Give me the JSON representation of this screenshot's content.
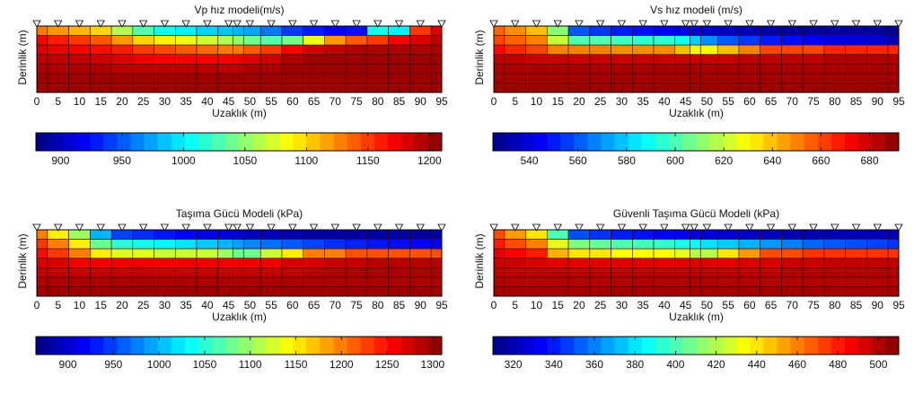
{
  "chart_data": [
    {
      "type": "heatmap",
      "title": "Vp hız modeli(m/s)",
      "xlabel": "Uzaklık (m)",
      "ylabel": "Derinlik (m)",
      "x_ticks": [
        "0",
        "5",
        "10",
        "15",
        "20",
        "25",
        "30",
        "35",
        "40",
        "45",
        "50",
        "55",
        "60",
        "65",
        "70",
        "75",
        "80",
        "85",
        "90",
        "95"
      ],
      "xlim": [
        0,
        95
      ],
      "colorbar": {
        "min": 880,
        "max": 1210,
        "ticks": [
          "900",
          "950",
          "1000",
          "1050",
          "1100",
          "1150",
          "1200"
        ]
      },
      "columns_x": [
        0,
        5,
        10,
        15,
        20,
        25,
        30,
        35,
        40,
        45,
        47,
        50,
        55,
        60,
        65,
        70,
        75,
        80,
        85,
        90,
        95
      ],
      "layers": [
        {
          "layer": 1,
          "values": [
            1130,
            1120,
            1110,
            1100,
            1060,
            1030,
            1010,
            1000,
            990,
            985,
            980,
            975,
            960,
            940,
            930,
            920,
            925,
            1010,
            1000,
            1150,
            1180
          ]
        },
        {
          "layer": 2,
          "values": [
            1170,
            1160,
            1150,
            1140,
            1120,
            1100,
            1090,
            1080,
            1070,
            1060,
            1050,
            1040,
            1030,
            1040,
            1080,
            1120,
            1140,
            1150,
            1170,
            1180,
            1190
          ]
        },
        {
          "layer": 3,
          "values": [
            1180,
            1175,
            1170,
            1165,
            1160,
            1150,
            1145,
            1140,
            1135,
            1130,
            1130,
            1140,
            1150,
            1170,
            1185,
            1190,
            1195,
            1195,
            1195,
            1195,
            1195
          ]
        },
        {
          "layer": 4,
          "values": [
            1190,
            1190,
            1190,
            1185,
            1180,
            1175,
            1170,
            1170,
            1170,
            1170,
            1175,
            1180,
            1185,
            1195,
            1200,
            1200,
            1200,
            1200,
            1200,
            1200,
            1200
          ]
        },
        {
          "layer": 5,
          "values": [
            1195,
            1195,
            1195,
            1195,
            1190,
            1190,
            1190,
            1190,
            1190,
            1190,
            1190,
            1195,
            1195,
            1200,
            1200,
            1200,
            1200,
            1200,
            1200,
            1200,
            1200
          ]
        },
        {
          "layer": 6,
          "values": [
            1200,
            1200,
            1200,
            1200,
            1200,
            1200,
            1200,
            1200,
            1200,
            1200,
            1200,
            1200,
            1200,
            1200,
            1200,
            1200,
            1200,
            1200,
            1200,
            1200,
            1200
          ]
        },
        {
          "layer": 7,
          "values": [
            1200,
            1200,
            1200,
            1200,
            1200,
            1200,
            1200,
            1200,
            1200,
            1200,
            1200,
            1200,
            1200,
            1200,
            1200,
            1200,
            1200,
            1200,
            1200,
            1200,
            1200
          ]
        }
      ],
      "geophones_x": [
        0,
        5,
        10,
        15,
        20,
        25,
        30,
        35,
        40,
        45,
        47,
        50,
        55,
        60,
        65,
        70,
        75,
        80,
        85,
        90,
        95
      ]
    },
    {
      "type": "heatmap",
      "title": "Vs hız modeli (m/s)",
      "xlabel": "Uzaklık (m)",
      "ylabel": "Derinlik (m)",
      "x_ticks": [
        "0",
        "5",
        "10",
        "15",
        "20",
        "25",
        "30",
        "35",
        "40",
        "45",
        "50",
        "55",
        "60",
        "65",
        "70",
        "75",
        "80",
        "85",
        "90",
        "95"
      ],
      "xlim": [
        0,
        95
      ],
      "colorbar": {
        "min": 525,
        "max": 692,
        "ticks": [
          "540",
          "560",
          "580",
          "600",
          "620",
          "640",
          "660",
          "680"
        ]
      },
      "columns_x": [
        0,
        5,
        10,
        15,
        20,
        25,
        30,
        35,
        40,
        45,
        47,
        50,
        55,
        60,
        65,
        70,
        75,
        80,
        85,
        90,
        95
      ],
      "layers": [
        {
          "layer": 1,
          "values": [
            655,
            648,
            640,
            610,
            560,
            555,
            550,
            548,
            545,
            542,
            540,
            538,
            536,
            534,
            532,
            530,
            530,
            530,
            530,
            530,
            528
          ]
        },
        {
          "layer": 2,
          "values": [
            660,
            655,
            650,
            620,
            600,
            600,
            598,
            595,
            595,
            590,
            580,
            570,
            560,
            555,
            550,
            548,
            545,
            542,
            540,
            538,
            535
          ]
        },
        {
          "layer": 3,
          "values": [
            670,
            665,
            660,
            650,
            650,
            650,
            648,
            648,
            648,
            640,
            630,
            630,
            640,
            650,
            660,
            660,
            660,
            665,
            665,
            665,
            665
          ]
        },
        {
          "layer": 4,
          "values": [
            682,
            682,
            680,
            680,
            680,
            680,
            680,
            680,
            680,
            680,
            680,
            680,
            680,
            682,
            682,
            682,
            682,
            684,
            684,
            684,
            684
          ]
        },
        {
          "layer": 5,
          "values": [
            685,
            685,
            685,
            685,
            685,
            685,
            685,
            685,
            685,
            685,
            685,
            685,
            685,
            685,
            685,
            685,
            685,
            685,
            685,
            685,
            685
          ]
        },
        {
          "layer": 6,
          "values": [
            686,
            686,
            686,
            686,
            686,
            686,
            686,
            686,
            686,
            686,
            686,
            686,
            686,
            686,
            686,
            686,
            686,
            686,
            686,
            686,
            686
          ]
        },
        {
          "layer": 7,
          "values": [
            687,
            687,
            687,
            687,
            687,
            687,
            687,
            687,
            687,
            687,
            687,
            687,
            687,
            687,
            687,
            687,
            687,
            687,
            687,
            687,
            687
          ]
        }
      ],
      "geophones_x": [
        0,
        5,
        10,
        15,
        20,
        25,
        30,
        35,
        40,
        45,
        47,
        50,
        55,
        60,
        65,
        70,
        75,
        80,
        85,
        90,
        95
      ]
    },
    {
      "type": "heatmap",
      "title": "Taşıma Gücü Modeli (kPa)",
      "xlabel": "Uzaklık (m)",
      "ylabel": "Derinlik (m)",
      "x_ticks": [
        "0",
        "5",
        "10",
        "15",
        "20",
        "25",
        "30",
        "35",
        "40",
        "45",
        "50",
        "55",
        "60",
        "65",
        "70",
        "75",
        "80",
        "85",
        "90",
        "95"
      ],
      "xlim": [
        0,
        95
      ],
      "colorbar": {
        "min": 865,
        "max": 1310,
        "ticks": [
          "900",
          "950",
          "1000",
          "1050",
          "1100",
          "1150",
          "1200",
          "1250",
          "1300"
        ]
      },
      "columns_x": [
        0,
        5,
        10,
        15,
        20,
        25,
        30,
        35,
        40,
        45,
        47,
        50,
        55,
        60,
        65,
        70,
        75,
        80,
        85,
        90,
        95
      ],
      "layers": [
        {
          "layer": 1,
          "values": [
            1200,
            1150,
            1100,
            1000,
            950,
            940,
            930,
            920,
            910,
            905,
            900,
            895,
            890,
            885,
            880,
            880,
            880,
            880,
            880,
            880,
            880
          ]
        },
        {
          "layer": 2,
          "values": [
            1230,
            1200,
            1150,
            1080,
            1050,
            1040,
            1030,
            1020,
            1010,
            1000,
            990,
            980,
            970,
            960,
            950,
            940,
            935,
            930,
            925,
            920,
            915
          ]
        },
        {
          "layer": 3,
          "values": [
            1250,
            1230,
            1200,
            1150,
            1130,
            1130,
            1120,
            1120,
            1120,
            1100,
            1080,
            1080,
            1120,
            1150,
            1200,
            1200,
            1220,
            1220,
            1220,
            1220,
            1220
          ]
        },
        {
          "layer": 4,
          "values": [
            1270,
            1270,
            1260,
            1260,
            1260,
            1260,
            1260,
            1260,
            1260,
            1260,
            1260,
            1260,
            1260,
            1270,
            1270,
            1280,
            1280,
            1285,
            1285,
            1285,
            1285
          ]
        },
        {
          "layer": 5,
          "values": [
            1280,
            1280,
            1280,
            1280,
            1280,
            1280,
            1280,
            1280,
            1280,
            1280,
            1280,
            1280,
            1280,
            1280,
            1285,
            1290,
            1290,
            1290,
            1290,
            1290,
            1290
          ]
        },
        {
          "layer": 6,
          "values": [
            1290,
            1290,
            1290,
            1290,
            1290,
            1290,
            1290,
            1290,
            1290,
            1290,
            1290,
            1290,
            1290,
            1290,
            1290,
            1290,
            1290,
            1290,
            1290,
            1290,
            1290
          ]
        },
        {
          "layer": 7,
          "values": [
            1295,
            1295,
            1295,
            1295,
            1295,
            1295,
            1295,
            1295,
            1295,
            1295,
            1295,
            1295,
            1295,
            1295,
            1295,
            1295,
            1295,
            1295,
            1295,
            1295,
            1295
          ]
        }
      ],
      "geophones_x": [
        0,
        5,
        10,
        15,
        20,
        25,
        30,
        35,
        40,
        45,
        47,
        50,
        55,
        60,
        65,
        70,
        75,
        80,
        85,
        90,
        95
      ]
    },
    {
      "type": "heatmap",
      "title": "Güvenli Taşıma Gücü Modeli (kPa)",
      "xlabel": "Uzaklık (m)",
      "ylabel": "Derinlik (m)",
      "x_ticks": [
        "0",
        "5",
        "10",
        "15",
        "20",
        "25",
        "30",
        "35",
        "40",
        "45",
        "50",
        "55",
        "60",
        "65",
        "70",
        "75",
        "80",
        "85",
        "90",
        "95"
      ],
      "xlim": [
        0,
        95
      ],
      "colorbar": {
        "min": 310,
        "max": 510,
        "ticks": [
          "320",
          "340",
          "360",
          "380",
          "400",
          "420",
          "440",
          "460",
          "480",
          "500"
        ]
      },
      "columns_x": [
        0,
        5,
        10,
        15,
        20,
        25,
        30,
        35,
        40,
        45,
        47,
        50,
        55,
        60,
        65,
        70,
        75,
        80,
        85,
        90,
        95
      ],
      "layers": [
        {
          "layer": 1,
          "values": [
            470,
            455,
            440,
            400,
            350,
            345,
            340,
            338,
            335,
            332,
            330,
            328,
            326,
            324,
            322,
            320,
            320,
            320,
            320,
            320,
            320
          ]
        },
        {
          "layer": 2,
          "values": [
            480,
            470,
            460,
            430,
            410,
            405,
            400,
            398,
            395,
            390,
            385,
            380,
            375,
            370,
            365,
            360,
            355,
            352,
            350,
            348,
            345
          ]
        },
        {
          "layer": 3,
          "values": [
            490,
            485,
            480,
            450,
            440,
            440,
            435,
            435,
            435,
            430,
            420,
            420,
            440,
            455,
            470,
            470,
            475,
            475,
            475,
            475,
            475
          ]
        },
        {
          "layer": 4,
          "values": [
            495,
            495,
            492,
            490,
            490,
            490,
            490,
            490,
            490,
            490,
            490,
            490,
            490,
            492,
            492,
            495,
            495,
            497,
            497,
            497,
            497
          ]
        },
        {
          "layer": 5,
          "values": [
            498,
            498,
            498,
            498,
            498,
            498,
            498,
            498,
            498,
            498,
            498,
            498,
            498,
            498,
            498,
            500,
            500,
            500,
            500,
            500,
            500
          ]
        },
        {
          "layer": 6,
          "values": [
            500,
            500,
            500,
            500,
            500,
            500,
            500,
            500,
            500,
            500,
            500,
            500,
            500,
            500,
            500,
            500,
            500,
            500,
            500,
            500,
            500
          ]
        },
        {
          "layer": 7,
          "values": [
            502,
            502,
            502,
            502,
            502,
            502,
            502,
            502,
            502,
            502,
            502,
            502,
            502,
            502,
            502,
            502,
            502,
            502,
            502,
            502,
            502
          ]
        }
      ],
      "geophones_x": [
        0,
        5,
        10,
        15,
        20,
        25,
        30,
        35,
        40,
        45,
        47,
        50,
        55,
        60,
        65,
        70,
        75,
        80,
        85,
        90,
        95
      ]
    }
  ]
}
